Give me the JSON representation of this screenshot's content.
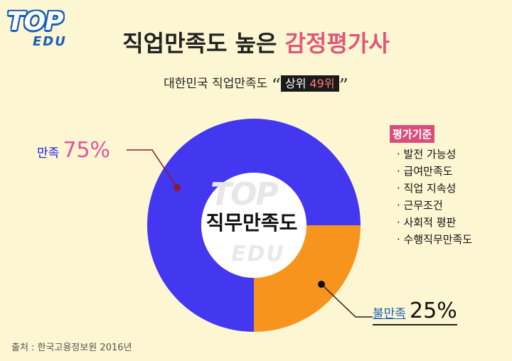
{
  "logo": {
    "top": "TOP",
    "edu": "EDU"
  },
  "title": {
    "main": "직업만족도 높은 ",
    "accent": "감정평가사"
  },
  "subtitle": {
    "text": "대한민국 직업만족도 ",
    "open_quote": "“",
    "rank_label": "상위 ",
    "rank_value": "49위",
    "close_quote": "”"
  },
  "chart_data": {
    "type": "pie",
    "donut": true,
    "center_label": "직무만족도",
    "series": [
      {
        "name": "만족",
        "value": 75,
        "label": "75%",
        "color": "#4338f0"
      },
      {
        "name": "불만족",
        "value": 25,
        "label": "25%",
        "color": "#f7941d"
      }
    ]
  },
  "criteria": {
    "heading": "평가기준",
    "items": [
      "발전 가능성",
      "급여만족도",
      "직업 지속성",
      "근무조건",
      "사회적 평판",
      "수행직무만족도"
    ]
  },
  "source": "출처 : 한국고용정보원 2016년",
  "colors": {
    "satisfied": "#4338f0",
    "unsatisfied": "#f7941d",
    "accent": "#e0567a",
    "background": "#fdf6d2"
  }
}
